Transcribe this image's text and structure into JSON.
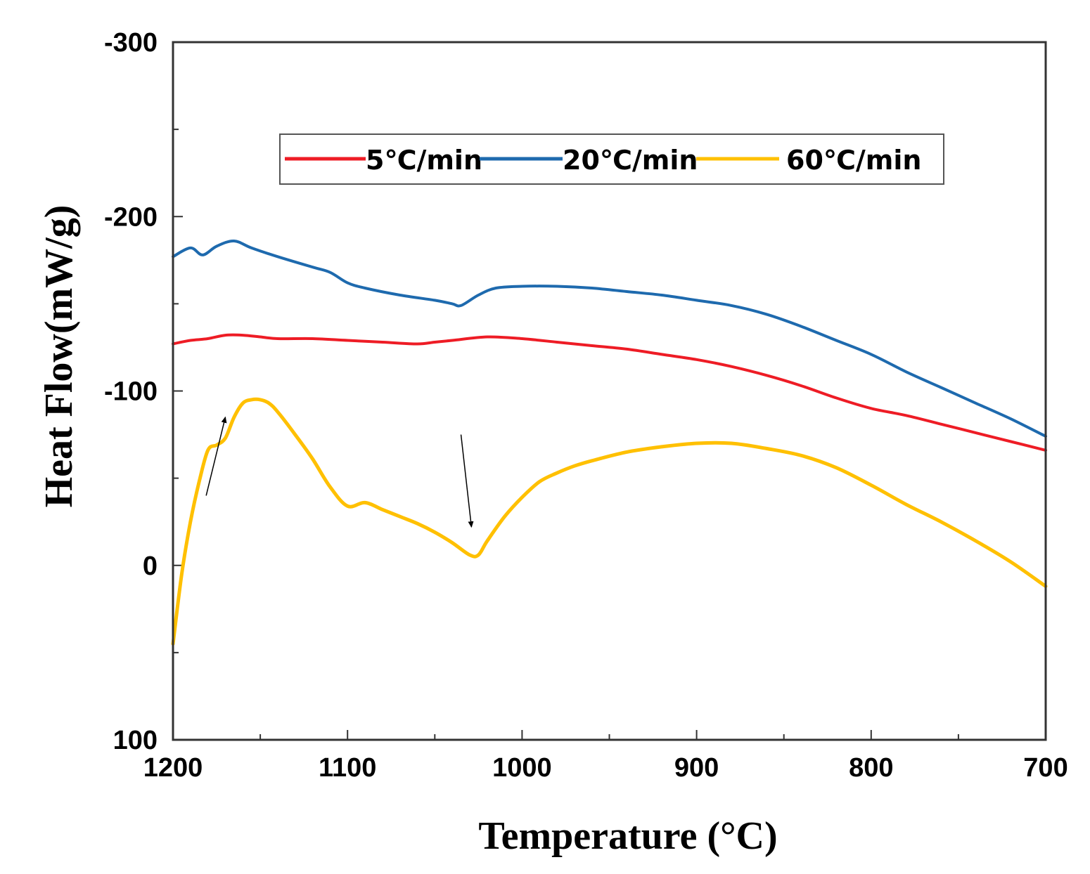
{
  "chart_data": {
    "type": "line",
    "title": "",
    "xlabel": "Temperature (°C)",
    "ylabel": "Heat Flow(mW/g)",
    "xlim": [
      1200,
      700
    ],
    "ylim": [
      100,
      -300
    ],
    "x_inverted": true,
    "y_inverted": true,
    "xticks": [
      1200,
      1100,
      1000,
      900,
      800,
      700
    ],
    "xtick_labels": [
      "1200",
      "1100",
      "1000",
      "900",
      "800",
      "700"
    ],
    "yticks": [
      100,
      0,
      -100,
      -200,
      -300
    ],
    "ytick_labels": [
      "100",
      "0",
      "-100",
      "-200",
      "-300"
    ],
    "grid": false,
    "legend_position": "top-center",
    "series": [
      {
        "name": "5℃/min",
        "color": "#ee1c25",
        "x": [
          1200,
          1190,
          1180,
          1170,
          1160,
          1150,
          1140,
          1120,
          1100,
          1080,
          1060,
          1050,
          1040,
          1020,
          1000,
          980,
          960,
          940,
          920,
          900,
          880,
          860,
          840,
          820,
          800,
          780,
          760,
          740,
          720,
          700
        ],
        "y": [
          -127,
          -129,
          -130,
          -132,
          -132,
          -131,
          -130,
          -130,
          -129,
          -128,
          -127,
          -128,
          -129,
          -131,
          -130,
          -128,
          -126,
          -124,
          -121,
          -118,
          -114,
          -109,
          -103,
          -96,
          -90,
          -86,
          -81,
          -76,
          -71,
          -66
        ]
      },
      {
        "name": "20℃/min",
        "color": "#1e6aae",
        "x": [
          1200,
          1190,
          1183,
          1175,
          1165,
          1155,
          1140,
          1120,
          1110,
          1100,
          1090,
          1070,
          1050,
          1040,
          1035,
          1025,
          1015,
          1000,
          980,
          960,
          940,
          920,
          900,
          880,
          860,
          840,
          820,
          800,
          780,
          760,
          740,
          720,
          700
        ],
        "y": [
          -177,
          -182,
          -178,
          -183,
          -186,
          -182,
          -177,
          -171,
          -168,
          -162,
          -159,
          -155,
          -152,
          -150,
          -149,
          -155,
          -159,
          -160,
          -160,
          -159,
          -157,
          -155,
          -152,
          -149,
          -144,
          -137,
          -129,
          -121,
          -111,
          -102,
          -93,
          -84,
          -74
        ]
      },
      {
        "name": "60℃/min",
        "color": "#ffc000",
        "x": [
          1200,
          1195,
          1190,
          1185,
          1180,
          1175,
          1170,
          1165,
          1160,
          1155,
          1150,
          1145,
          1140,
          1130,
          1120,
          1110,
          1100,
          1090,
          1080,
          1070,
          1060,
          1050,
          1040,
          1030,
          1025,
          1020,
          1010,
          1000,
          990,
          980,
          970,
          960,
          940,
          920,
          900,
          880,
          860,
          840,
          820,
          800,
          780,
          760,
          740,
          720,
          700
        ],
        "y": [
          45,
          5,
          -25,
          -48,
          -66,
          -69,
          -73,
          -85,
          -93,
          -95,
          -95,
          -93,
          -88,
          -75,
          -61,
          -45,
          -34,
          -36,
          -32,
          -28,
          -24,
          -19,
          -13,
          -6,
          -6,
          -14,
          -28,
          -39,
          -48,
          -53,
          -57,
          -60,
          -65,
          -68,
          -70,
          -70,
          -67,
          -63,
          -56,
          -46,
          -35,
          -25,
          -14,
          -2,
          12
        ]
      }
    ],
    "annotations": [
      {
        "type": "arrow",
        "from": [
          1181,
          -40
        ],
        "to": [
          1170,
          -85
        ]
      },
      {
        "type": "arrow",
        "from": [
          1035,
          -75
        ],
        "to": [
          1029,
          -22
        ]
      }
    ]
  }
}
